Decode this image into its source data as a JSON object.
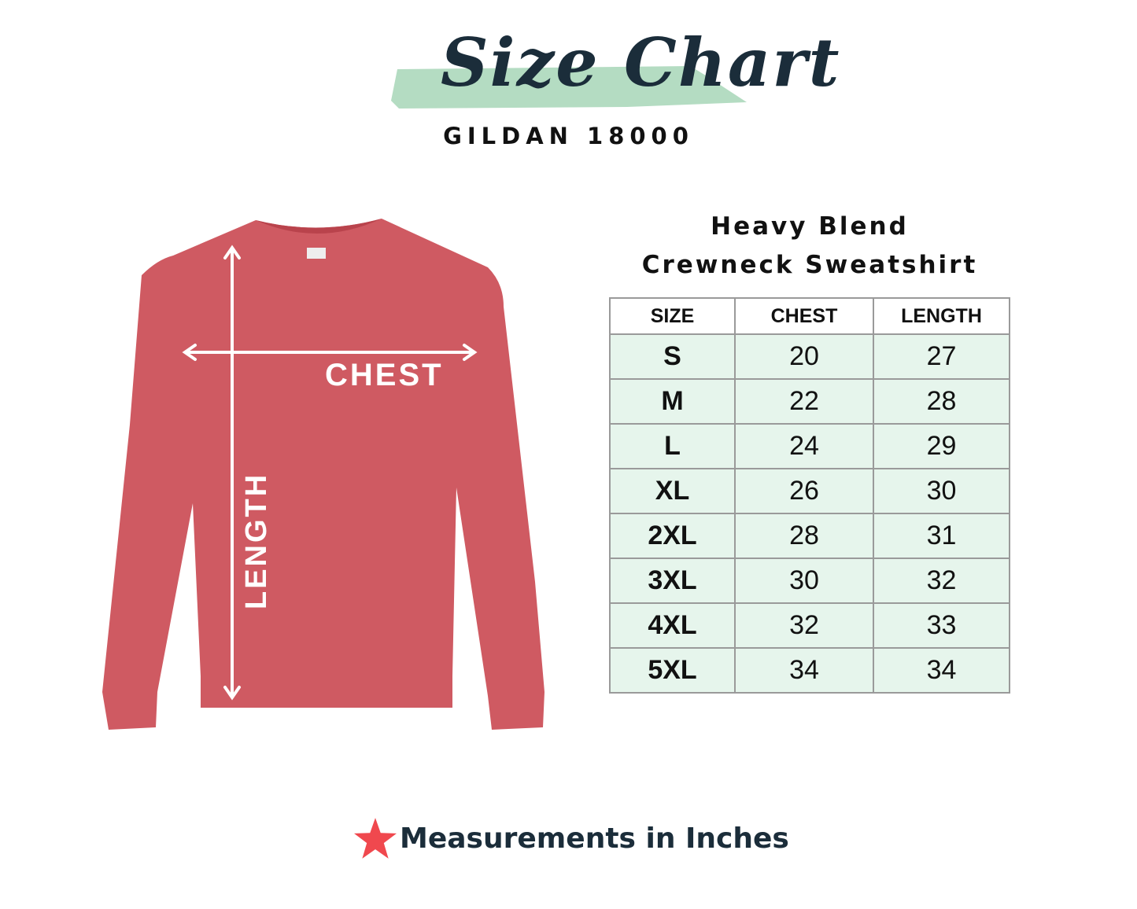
{
  "header": {
    "title": "Size Chart",
    "subtitle": "GILDAN 18000"
  },
  "illustration": {
    "chest_label": "CHEST",
    "length_label": "LENGTH",
    "garment_color": "#cf5a62"
  },
  "product": {
    "line1": "Heavy Blend",
    "line2": "Crewneck Sweatshirt"
  },
  "table": {
    "headers": [
      "SIZE",
      "CHEST",
      "LENGTH"
    ],
    "rows": [
      [
        "S",
        "20",
        "27"
      ],
      [
        "M",
        "22",
        "28"
      ],
      [
        "L",
        "24",
        "29"
      ],
      [
        "XL",
        "26",
        "30"
      ],
      [
        "2XL",
        "28",
        "31"
      ],
      [
        "3XL",
        "30",
        "32"
      ],
      [
        "4XL",
        "32",
        "33"
      ],
      [
        "5XL",
        "34",
        "34"
      ]
    ]
  },
  "footer": {
    "note": "Measurements in Inches",
    "icon": "star-icon",
    "icon_color": "#f0484e"
  },
  "colors": {
    "accent": "#b4dcc2",
    "text_dark": "#1b2d3a",
    "row_bg": "#e6f5ec"
  }
}
